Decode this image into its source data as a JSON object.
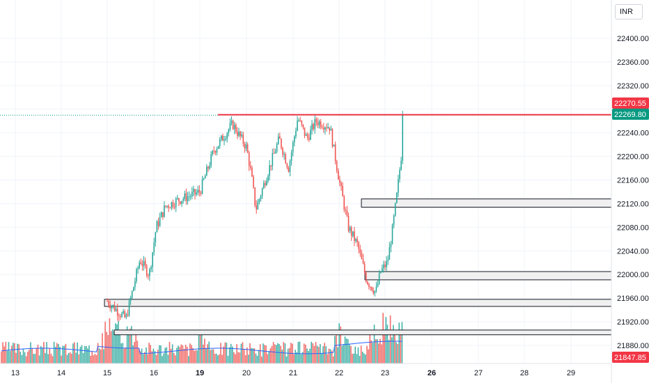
{
  "currency": "INR",
  "chart_data": {
    "type": "candlestick",
    "x_tick_labels": [
      "13",
      "14",
      "15",
      "16",
      "19",
      "20",
      "21",
      "22",
      "23",
      "26",
      "27",
      "28",
      "29"
    ],
    "bold_x_ticks": [
      "19",
      "26"
    ],
    "y_tick_labels": [
      "22400.00",
      "22360.00",
      "22320.00",
      "22280.00",
      "22240.00",
      "22200.00",
      "22160.00",
      "22120.00",
      "22080.00",
      "22040.00",
      "22000.00",
      "21960.00",
      "21920.00",
      "21880.00"
    ],
    "ylim": [
      21840,
      22440
    ],
    "price_labels": {
      "resistance": "22270.55",
      "last_price": "22269.80",
      "bottom": "21847.85"
    },
    "resistance_level": 22270.55,
    "last_price": 22269.8,
    "zones": [
      {
        "low": 22114,
        "high": 22128
      },
      {
        "low": 21991,
        "high": 22005
      },
      {
        "low": 21946,
        "high": 21958
      },
      {
        "low": 21898,
        "high": 21906
      }
    ],
    "path": [
      [
        "15",
        21955
      ],
      [
        "15.4",
        21925
      ],
      [
        "15.7",
        22025
      ],
      [
        "15.9",
        22000
      ],
      [
        "16.1",
        22080
      ],
      [
        "16.5",
        22115
      ],
      [
        "17",
        22125
      ],
      [
        "19",
        22140
      ],
      [
        "19.3",
        22210
      ],
      [
        "19.7",
        22255
      ],
      [
        "20",
        22215
      ],
      [
        "20.1",
        22170
      ],
      [
        "20.2",
        22110
      ],
      [
        "20.4",
        22160
      ],
      [
        "20.7",
        22230
      ],
      [
        "20.9",
        22180
      ],
      [
        "21.1",
        22265
      ],
      [
        "21.3",
        22230
      ],
      [
        "21.5",
        22260
      ],
      [
        "21.8",
        22250
      ],
      [
        "22",
        22160
      ],
      [
        "22.2",
        22080
      ],
      [
        "22.4",
        22050
      ],
      [
        "22.6",
        21990
      ],
      [
        "22.8",
        21970
      ],
      [
        "22.9",
        22005
      ],
      [
        "23.1",
        22020
      ],
      [
        "23.3",
        22070
      ],
      [
        "23.5",
        22130
      ],
      [
        "23.7",
        22200
      ],
      [
        "23.8",
        22269.8
      ]
    ],
    "volume_ma_color": "#2962ff",
    "colors": {
      "up": "#26a69a",
      "down": "#ef5350",
      "resistance": "#f23645",
      "last": "#089981"
    }
  }
}
